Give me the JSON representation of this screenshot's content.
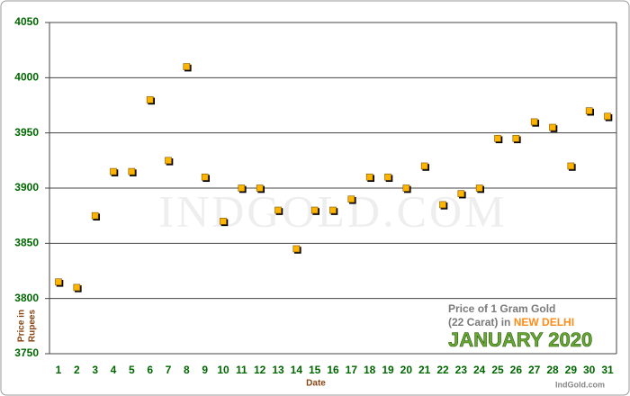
{
  "chart_data": {
    "type": "line",
    "watermark": "IndGold.com",
    "x_label": "Date",
    "y_label_lines": [
      "Price in",
      "Rupees"
    ],
    "annotation": {
      "line1": "Price of 1 Gram Gold",
      "line2": "(22 Carat) in",
      "city": "NEW DELHI",
      "period": "JANUARY 2020"
    },
    "credit": "IndGold.com",
    "categories": [
      "1",
      "2",
      "3",
      "4",
      "5",
      "6",
      "7",
      "8",
      "9",
      "10",
      "11",
      "12",
      "13",
      "14",
      "15",
      "16",
      "17",
      "18",
      "19",
      "20",
      "21",
      "22",
      "23",
      "24",
      "25",
      "26",
      "27",
      "28",
      "29",
      "30",
      "31"
    ],
    "series": [
      {
        "color": "#3a9a5b",
        "marker_color": "#ffb400",
        "values": [
          3815,
          3810,
          3875,
          3915,
          3915,
          3980,
          3925,
          4010,
          3910,
          3870,
          3900,
          3900,
          3880,
          3845,
          3880,
          3880,
          3890,
          3910,
          3910,
          3900,
          3920,
          3885,
          3895,
          3900,
          3945,
          3945,
          3960,
          3955,
          3920,
          3970,
          3965
        ]
      }
    ],
    "ylim": [
      3750,
      4050
    ],
    "yticks": [
      3750,
      3800,
      3850,
      3900,
      3950,
      4000,
      4050
    ],
    "grid": true
  }
}
